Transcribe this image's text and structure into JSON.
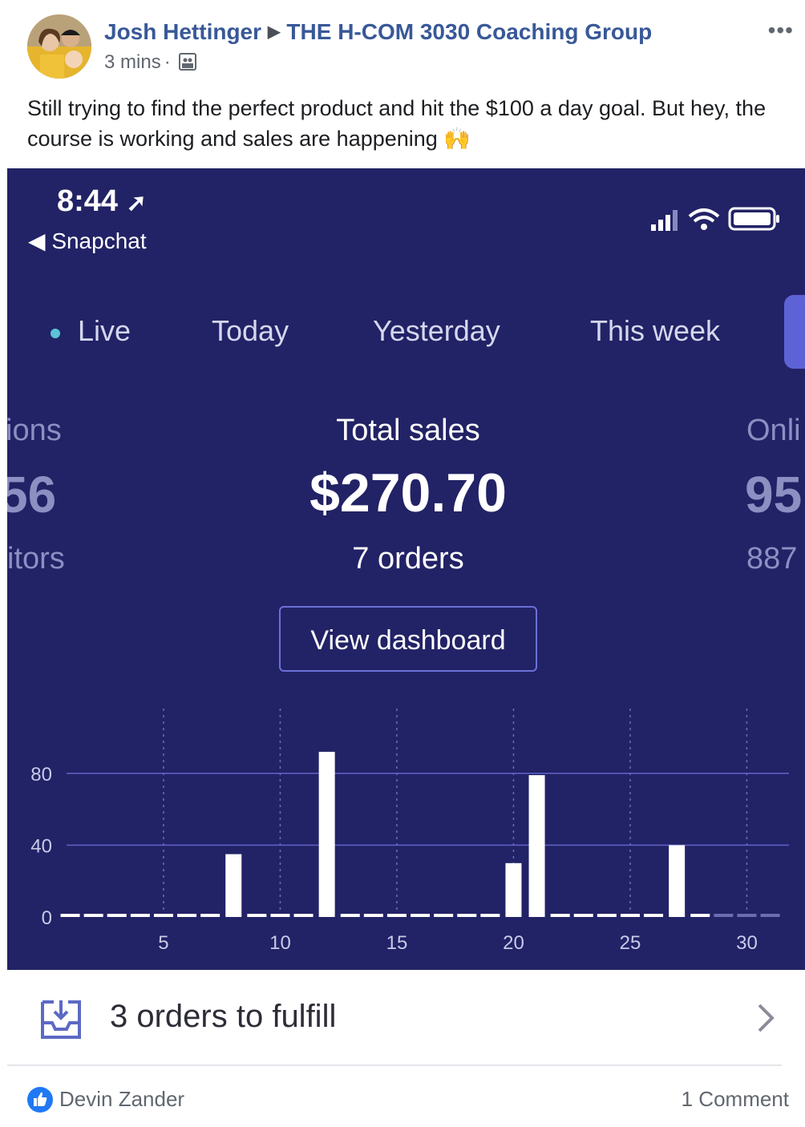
{
  "post": {
    "author": "Josh Hettinger",
    "group": "THE H-COM 3030 Coaching Group",
    "time": "3 mins",
    "text": "Still trying to find the perfect product and hit the $100 a day goal. But hey, the course is working and sales are happening 🙌"
  },
  "phone": {
    "time": "8:44",
    "back_label": "◀ Snapchat",
    "tabs": [
      "Live",
      "Today",
      "Yesterday",
      "This week"
    ],
    "left_stat": {
      "label": "ions",
      "value": "56",
      "sub": "itors"
    },
    "center_stat": {
      "label": "Total sales",
      "value": "$270.70",
      "sub": "7 orders"
    },
    "right_stat": {
      "label": "Onli",
      "value": "95",
      "sub": "887"
    },
    "dashboard_button": "View dashboard",
    "fulfill_text": "3 orders to fulfill"
  },
  "chart_data": {
    "type": "bar",
    "x": [
      1,
      2,
      3,
      4,
      5,
      6,
      7,
      8,
      9,
      10,
      11,
      12,
      13,
      14,
      15,
      16,
      17,
      18,
      19,
      20,
      21,
      22,
      23,
      24,
      25,
      26,
      27,
      28,
      29,
      30,
      31
    ],
    "values": [
      0,
      0,
      0,
      0,
      0,
      0,
      0,
      35,
      0,
      0,
      0,
      92,
      0,
      0,
      0,
      0,
      0,
      0,
      0,
      30,
      79,
      0,
      0,
      0,
      0,
      0,
      40,
      0,
      0,
      0,
      0
    ],
    "yticks": [
      0,
      40,
      80
    ],
    "xticks": [
      5,
      10,
      15,
      20,
      25,
      30
    ],
    "ylim": [
      0,
      100
    ],
    "bar_color": "#ffffff",
    "grid": true
  },
  "footer": {
    "liker": "Devin Zander",
    "comments": "1 Comment"
  },
  "colors": {
    "phone_bg": "#222266",
    "link": "#385898",
    "like": "#2078f4"
  }
}
